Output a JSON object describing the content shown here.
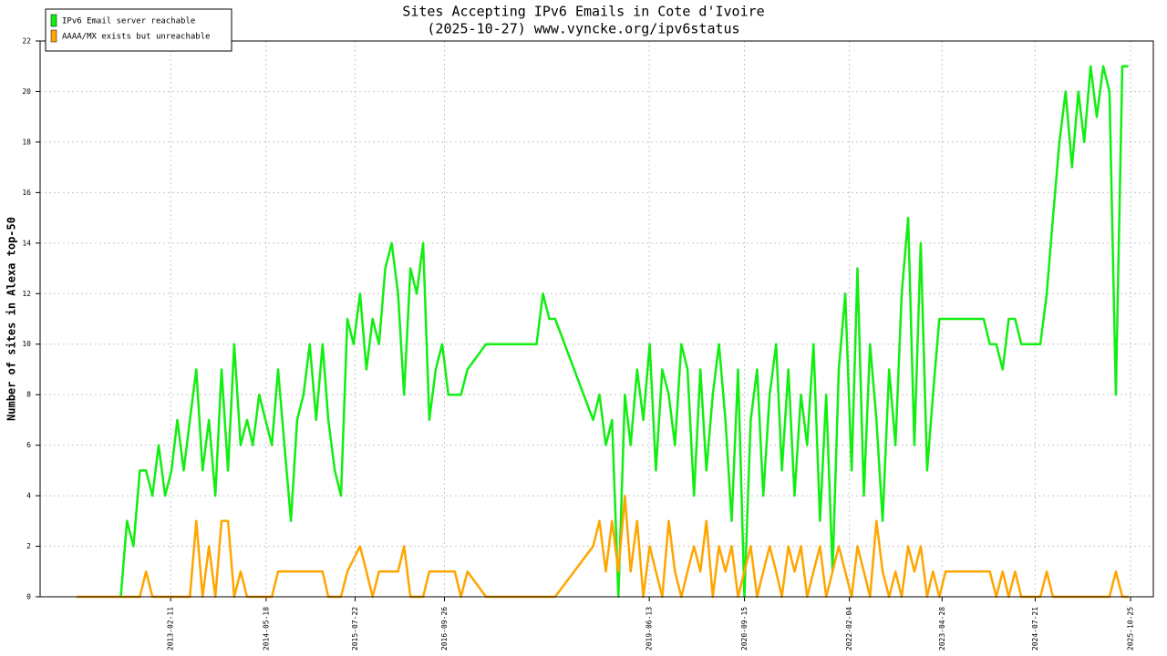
{
  "chart_data": {
    "type": "line",
    "title": "Sites Accepting IPv6 Emails in Cote d'Ivoire",
    "subtitle": "(2025-10-27) www.vyncke.org/ipv6status",
    "y_label": "Number of sites in Alexa top-50",
    "xlim": [
      "2011-05-22",
      "2026-02-12"
    ],
    "xticks": [
      "2013-02-11",
      "2014-05-18",
      "2015-07-22",
      "2016-09-26",
      "2019-06-13",
      "2020-09-15",
      "2022-02-04",
      "2023-04-28",
      "2024-07-21",
      "2025-10-25"
    ],
    "ylim": [
      0,
      22
    ],
    "yticks": [
      0,
      2,
      4,
      6,
      8,
      10,
      12,
      14,
      16,
      18,
      20,
      22
    ],
    "grid": true,
    "legend": "upper left",
    "series": [
      {
        "name": "IPv6 Email server reachable",
        "color": "#11ee11",
        "x": [
          "2012-06-15",
          "2012-07-15",
          "2012-08-15",
          "2012-09-15",
          "2012-10-15",
          "2012-11-15",
          "2012-12-15",
          "2013-01-15",
          "2013-02-15",
          "2013-03-15",
          "2013-04-15",
          "2013-05-15",
          "2013-06-15",
          "2013-07-15",
          "2013-08-15",
          "2013-09-15",
          "2013-10-15",
          "2013-11-15",
          "2013-12-15",
          "2014-01-15",
          "2014-02-15",
          "2014-03-15",
          "2014-04-15",
          "2014-05-15",
          "2014-06-15",
          "2014-07-15",
          "2014-08-15",
          "2014-09-15",
          "2014-10-15",
          "2014-11-15",
          "2014-12-15",
          "2015-01-15",
          "2015-02-15",
          "2015-03-15",
          "2015-04-15",
          "2015-05-15",
          "2015-06-15",
          "2015-07-15",
          "2015-08-15",
          "2015-09-15",
          "2015-10-15",
          "2015-11-15",
          "2015-12-15",
          "2016-01-15",
          "2016-02-15",
          "2016-03-15",
          "2016-04-15",
          "2016-05-15",
          "2016-06-15",
          "2016-07-15",
          "2016-08-15",
          "2016-09-15",
          "2016-10-15",
          "2016-11-15",
          "2016-12-15",
          "2017-01-15",
          "2017-04-15",
          "2017-12-15",
          "2018-01-15",
          "2018-02-15",
          "2018-03-15",
          "2018-09-15",
          "2018-10-15",
          "2018-11-15",
          "2018-12-15",
          "2019-01-15",
          "2019-02-15",
          "2019-03-15",
          "2019-04-15",
          "2019-05-15",
          "2019-06-15",
          "2019-07-15",
          "2019-08-15",
          "2019-09-15",
          "2019-10-15",
          "2019-11-15",
          "2019-12-15",
          "2020-01-15",
          "2020-02-15",
          "2020-03-15",
          "2020-04-15",
          "2020-05-15",
          "2020-06-15",
          "2020-07-15",
          "2020-08-15",
          "2020-09-15",
          "2020-10-15",
          "2020-11-15",
          "2020-12-15",
          "2021-01-15",
          "2021-02-15",
          "2021-03-15",
          "2021-04-15",
          "2021-05-15",
          "2021-06-15",
          "2021-07-15",
          "2021-08-15",
          "2021-09-15",
          "2021-10-15",
          "2021-11-15",
          "2021-12-15",
          "2022-01-15",
          "2022-02-15",
          "2022-03-15",
          "2022-04-15",
          "2022-05-15",
          "2022-06-15",
          "2022-07-15",
          "2022-08-15",
          "2022-09-15",
          "2022-10-15",
          "2022-11-15",
          "2022-12-15",
          "2023-01-15",
          "2023-02-15",
          "2023-03-15",
          "2023-04-15",
          "2023-05-15",
          "2023-06-15",
          "2023-07-15",
          "2023-08-15",
          "2023-09-15",
          "2023-10-15",
          "2023-11-15",
          "2023-12-15",
          "2024-01-15",
          "2024-02-15",
          "2024-03-15",
          "2024-04-15",
          "2024-05-15",
          "2024-06-15",
          "2024-07-15",
          "2024-08-15",
          "2024-09-15",
          "2024-10-15",
          "2024-11-15",
          "2024-12-15",
          "2025-01-15",
          "2025-02-15",
          "2025-03-15",
          "2025-04-15",
          "2025-05-15",
          "2025-06-15",
          "2025-07-15",
          "2025-08-15",
          "2025-09-15",
          "2025-10-15"
        ],
        "values": [
          0,
          3,
          2,
          5,
          5,
          4,
          6,
          4,
          5,
          7,
          5,
          7,
          9,
          5,
          7,
          4,
          9,
          5,
          10,
          6,
          7,
          6,
          8,
          7,
          6,
          9,
          6,
          3,
          7,
          8,
          10,
          7,
          10,
          7,
          5,
          4,
          11,
          10,
          12,
          9,
          11,
          10,
          13,
          14,
          12,
          8,
          13,
          12,
          14,
          7,
          9,
          10,
          8,
          8,
          8,
          9,
          10,
          10,
          12,
          11,
          11,
          7,
          8,
          6,
          7,
          0,
          8,
          6,
          9,
          7,
          10,
          5,
          9,
          8,
          6,
          10,
          9,
          4,
          9,
          5,
          8,
          10,
          7,
          3,
          9,
          0,
          7,
          9,
          4,
          8,
          10,
          5,
          9,
          4,
          8,
          6,
          10,
          3,
          8,
          1,
          9,
          12,
          5,
          13,
          4,
          10,
          7,
          3,
          9,
          6,
          12,
          15,
          6,
          14,
          5,
          8,
          11,
          11,
          11,
          11,
          11,
          11,
          11,
          11,
          10,
          10,
          9,
          11,
          11,
          10,
          10,
          10,
          10,
          12,
          15,
          18,
          20,
          17,
          20,
          18,
          21,
          19,
          21,
          20,
          8,
          21,
          21
        ]
      },
      {
        "name": "AAAA/MX exists but unreachable",
        "color": "#ffa500",
        "x": [
          "2011-11-15",
          "2012-09-15",
          "2012-10-15",
          "2012-11-15",
          "2013-05-15",
          "2013-06-15",
          "2013-07-15",
          "2013-08-15",
          "2013-09-15",
          "2013-10-15",
          "2013-11-15",
          "2013-12-15",
          "2014-01-15",
          "2014-02-15",
          "2014-06-15",
          "2014-07-15",
          "2015-02-15",
          "2015-03-15",
          "2015-05-15",
          "2015-06-15",
          "2015-08-15",
          "2015-09-15",
          "2015-10-15",
          "2015-11-15",
          "2016-01-15",
          "2016-02-15",
          "2016-03-15",
          "2016-04-15",
          "2016-06-15",
          "2016-07-15",
          "2016-11-15",
          "2016-12-15",
          "2017-01-15",
          "2017-04-15",
          "2018-03-15",
          "2018-09-15",
          "2018-10-15",
          "2018-11-15",
          "2018-12-15",
          "2019-01-15",
          "2019-02-15",
          "2019-03-15",
          "2019-04-15",
          "2019-05-15",
          "2019-06-15",
          "2019-07-15",
          "2019-08-15",
          "2019-09-15",
          "2019-10-15",
          "2019-11-15",
          "2019-12-15",
          "2020-01-15",
          "2020-02-15",
          "2020-03-15",
          "2020-04-15",
          "2020-05-15",
          "2020-06-15",
          "2020-07-15",
          "2020-08-15",
          "2020-09-15",
          "2020-10-15",
          "2020-11-15",
          "2020-12-15",
          "2021-01-15",
          "2021-02-15",
          "2021-03-15",
          "2021-04-15",
          "2021-05-15",
          "2021-06-15",
          "2021-07-15",
          "2021-08-15",
          "2021-09-15",
          "2021-10-15",
          "2021-11-15",
          "2021-12-15",
          "2022-01-15",
          "2022-02-15",
          "2022-03-15",
          "2022-04-15",
          "2022-05-15",
          "2022-06-15",
          "2022-07-15",
          "2022-08-15",
          "2022-09-15",
          "2022-10-15",
          "2022-11-15",
          "2022-12-15",
          "2023-01-15",
          "2023-02-15",
          "2023-03-15",
          "2023-04-15",
          "2023-05-15",
          "2023-06-15",
          "2023-07-15",
          "2023-08-15",
          "2023-09-15",
          "2023-10-15",
          "2023-11-15",
          "2023-12-15",
          "2024-01-15",
          "2024-02-15",
          "2024-03-15",
          "2024-04-15",
          "2024-05-15",
          "2024-08-15",
          "2024-09-15",
          "2024-10-15",
          "2025-07-15",
          "2025-08-15",
          "2025-09-15",
          "2025-10-15"
        ],
        "values": [
          0,
          0,
          1,
          0,
          0,
          3,
          0,
          2,
          0,
          3,
          3,
          0,
          1,
          0,
          0,
          1,
          1,
          0,
          0,
          1,
          2,
          1,
          0,
          1,
          1,
          1,
          2,
          0,
          0,
          1,
          1,
          0,
          1,
          0,
          0,
          2,
          3,
          1,
          3,
          1,
          4,
          1,
          3,
          0,
          2,
          1,
          0,
          3,
          1,
          0,
          1,
          2,
          1,
          3,
          0,
          2,
          1,
          2,
          0,
          1,
          2,
          0,
          1,
          2,
          1,
          0,
          2,
          1,
          2,
          0,
          1,
          2,
          0,
          1,
          2,
          1,
          0,
          2,
          1,
          0,
          3,
          1,
          0,
          1,
          0,
          2,
          1,
          2,
          0,
          1,
          0,
          1,
          1,
          1,
          1,
          1,
          1,
          1,
          1,
          0,
          1,
          0,
          1,
          0,
          0,
          1,
          0,
          0,
          1,
          0,
          0
        ]
      }
    ]
  }
}
